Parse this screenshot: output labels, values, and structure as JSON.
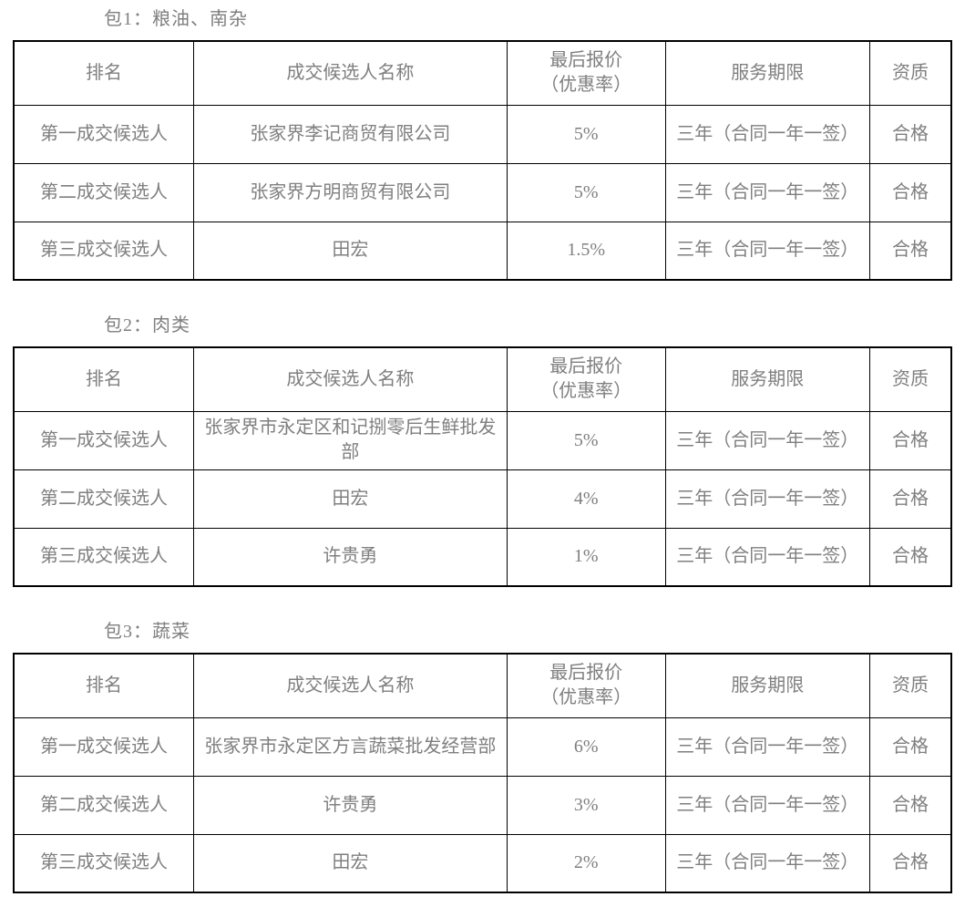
{
  "document": {
    "background": "#ffffff",
    "text_color": "#7f7f7f",
    "border_color": "#000000"
  },
  "columns": {
    "rank": "排名",
    "name": "成交候选人名称",
    "price_line1": "最后报价",
    "price_line2": "（优惠率）",
    "term": "服务期限",
    "qualification": "资质"
  },
  "tables": [
    {
      "title": "包1：粮油、南杂",
      "rows": [
        {
          "rank": "第一成交候选人",
          "name": "张家界李记商贸有限公司",
          "price": "5%",
          "term": "三年（合同一年一签）",
          "qualification": "合格"
        },
        {
          "rank": "第二成交候选人",
          "name": "张家界方明商贸有限公司",
          "price": "5%",
          "term": "三年（合同一年一签）",
          "qualification": "合格"
        },
        {
          "rank": "第三成交候选人",
          "name": "田宏",
          "price": "1.5%",
          "term": "三年（合同一年一签）",
          "qualification": "合格"
        }
      ]
    },
    {
      "title": "包2：肉类",
      "rows": [
        {
          "rank": "第一成交候选人",
          "name": "张家界市永定区和记捌零后生鲜批发部",
          "price": "5%",
          "term": "三年（合同一年一签）",
          "qualification": "合格"
        },
        {
          "rank": "第二成交候选人",
          "name": "田宏",
          "price": "4%",
          "term": "三年（合同一年一签）",
          "qualification": "合格"
        },
        {
          "rank": "第三成交候选人",
          "name": "许贵勇",
          "price": "1%",
          "term": "三年（合同一年一签）",
          "qualification": "合格"
        }
      ]
    },
    {
      "title": "包3：蔬菜",
      "rows": [
        {
          "rank": "第一成交候选人",
          "name": "张家界市永定区方言蔬菜批发经营部",
          "price": "6%",
          "term": "三年（合同一年一签）",
          "qualification": "合格"
        },
        {
          "rank": "第二成交候选人",
          "name": "许贵勇",
          "price": "3%",
          "term": "三年（合同一年一签）",
          "qualification": "合格"
        },
        {
          "rank": "第三成交候选人",
          "name": "田宏",
          "price": "2%",
          "term": "三年（合同一年一签）",
          "qualification": "合格"
        }
      ]
    }
  ]
}
